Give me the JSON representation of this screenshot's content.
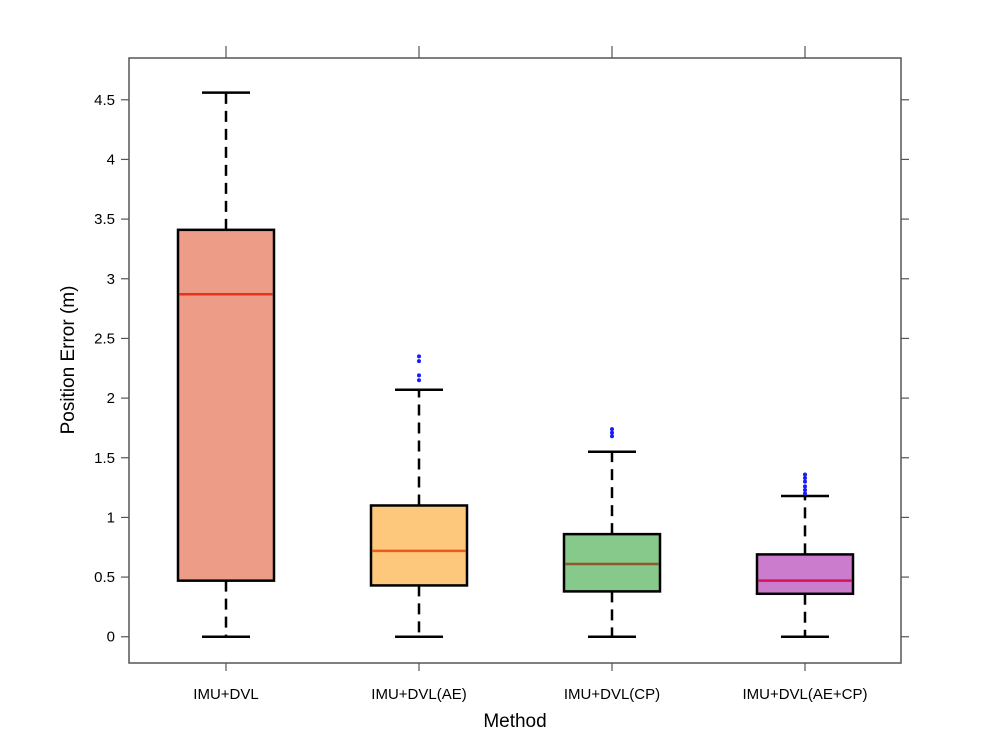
{
  "chart_data": {
    "type": "boxplot",
    "title": "",
    "xlabel": "Method",
    "ylabel": "Position Error (m)",
    "ylim": [
      -0.22,
      4.85
    ],
    "yticks": [
      0,
      0.5,
      1,
      1.5,
      2,
      2.5,
      3,
      3.5,
      4,
      4.5
    ],
    "ytick_labels": [
      "0",
      "0.5",
      "1",
      "1.5",
      "2",
      "2.5",
      "3",
      "3.5",
      "4",
      "4.5"
    ],
    "categories": [
      "IMU+DVL",
      "IMU+DVL(AE)",
      "IMU+DVL(CP)",
      "IMU+DVL(AE+CP)"
    ],
    "boxes": [
      {
        "name": "IMU+DVL",
        "whisker_low": 0.0,
        "q1": 0.47,
        "median": 2.87,
        "q3": 3.41,
        "whisker_high": 4.56,
        "outliers": [],
        "fill": "#ec9c87",
        "median_color": "#e8321e"
      },
      {
        "name": "IMU+DVL(AE)",
        "whisker_low": 0.0,
        "q1": 0.43,
        "median": 0.72,
        "q3": 1.1,
        "whisker_high": 2.07,
        "outliers": [
          2.15,
          2.19,
          2.31,
          2.35
        ],
        "fill": "#fdc87c",
        "median_color": "#f05a1a"
      },
      {
        "name": "IMU+DVL(CP)",
        "whisker_low": 0.0,
        "q1": 0.38,
        "median": 0.61,
        "q3": 0.86,
        "whisker_high": 1.55,
        "outliers": [
          1.68,
          1.71,
          1.74
        ],
        "fill": "#87c98a",
        "median_color": "#8b5a2b"
      },
      {
        "name": "IMU+DVL(AE+CP)",
        "whisker_low": 0.0,
        "q1": 0.36,
        "median": 0.47,
        "q3": 0.69,
        "whisker_high": 1.18,
        "outliers": [
          1.2,
          1.23,
          1.26,
          1.3,
          1.33,
          1.36
        ],
        "fill": "#cc7ccc",
        "median_color": "#d4145a"
      }
    ],
    "outlier_color": "#1a1aff",
    "grid": false
  }
}
